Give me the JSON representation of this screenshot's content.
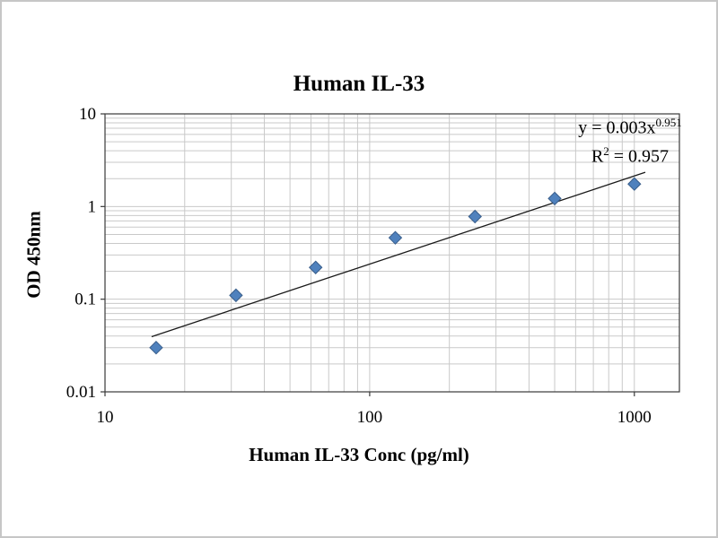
{
  "chart_data": {
    "type": "scatter",
    "title": "Human IL-33",
    "xlabel": "Human IL-33 Conc (pg/ml)",
    "ylabel": "OD 450nm",
    "x_scale": "log",
    "y_scale": "log",
    "xlim": [
      10,
      1480
    ],
    "ylim": [
      0.01,
      10
    ],
    "grid": "log-minor-and-major",
    "legend": "none",
    "x_tick_values": [
      10,
      100,
      1000
    ],
    "x_tick_labels": [
      "10",
      "100",
      "1000"
    ],
    "y_tick_values": [
      0.01,
      0.1,
      1,
      10
    ],
    "y_tick_labels": [
      "0.01",
      "0.1",
      "1",
      "10"
    ],
    "points": [
      {
        "x": 15.6,
        "y": 0.03
      },
      {
        "x": 31.25,
        "y": 0.11
      },
      {
        "x": 62.5,
        "y": 0.22
      },
      {
        "x": 125,
        "y": 0.46
      },
      {
        "x": 250,
        "y": 0.78
      },
      {
        "x": 500,
        "y": 1.22
      },
      {
        "x": 1000,
        "y": 1.75
      }
    ],
    "trendline": {
      "type": "power",
      "coefficient": 0.003,
      "exponent": 0.951,
      "x_start": 15,
      "x_end": 1100
    },
    "equation": {
      "prefix": "y = 0.003x",
      "exponent": "0.951",
      "r2_prefix": "R",
      "r2_sup": "2",
      "r2_suffix": " = 0.957"
    },
    "colors": {
      "marker_fill": "#4f81bd",
      "marker_stroke": "#385d8a",
      "trendline": "#1a1a1a",
      "gridline": "#c9c9c9",
      "axis": "#3a3a3a"
    }
  }
}
